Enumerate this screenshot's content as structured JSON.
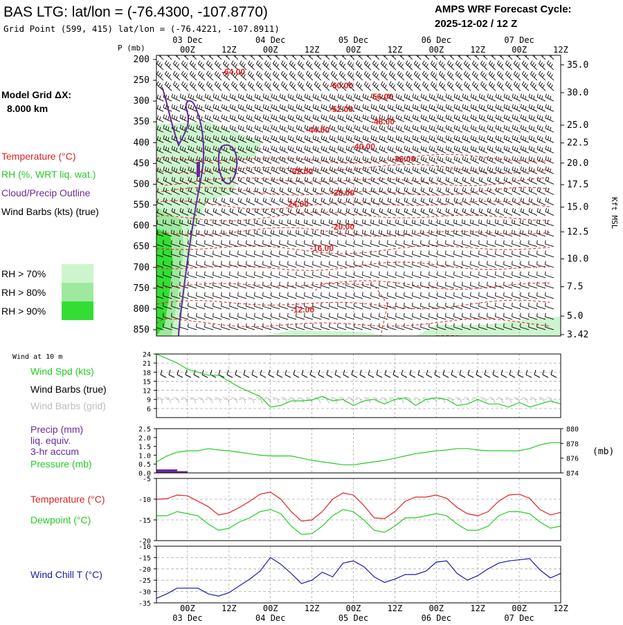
{
  "header": {
    "title": "BAS LTG:  lat/lon = (-76.4300, -107.8770)",
    "grid_point": "Grid Point (599, 415) lat/lon = (-76.4221, -107.8911)",
    "cycle_label": "AMPS WRF Forecast Cycle:",
    "cycle_value": "2025-12-02 / 12  Z"
  },
  "left_labels": {
    "model_grid_label": "Model Grid ΔX:",
    "model_grid_value": "8.000 km",
    "temperature": "Temperature (°C)",
    "rh": "RH (%, WRT liq. wat.)",
    "cloud": "Cloud/Precip Outline",
    "wind_barbs": "Wind Barbs (kts) (true)",
    "rh70": "RH > 70%",
    "rh80": "RH > 80%",
    "rh90": "RH > 90%",
    "wind_10m": "Wind at 10 m",
    "wind_spd": "Wind Spd (kts)",
    "wind_true": "Wind Barbs (true)",
    "wind_grid": "Wind Barbs (grid)",
    "precip1": "Precip (mm)",
    "precip2": "liq. equiv.",
    "precip3": "3-hr accum",
    "pressure": "Pressure (mb)",
    "temp2": "Temperature (°C)",
    "dewpoint": "Dewpoint (°C)",
    "windchill": "Wind Chill T (°C)",
    "mb_unit": "(mb)",
    "p_unit": "P (mb)",
    "kft_unit": "Kft MSL"
  },
  "colors": {
    "temperature": "#e02020",
    "green": "#22cc22",
    "cloud": "#6a2a9a",
    "windchill": "#1a1aa8",
    "gray": "#bdbdbd",
    "rh70": "#cdf5cd",
    "rh80": "#9fe89f",
    "rh90": "#33dd33"
  },
  "chart_data": {
    "type": "line",
    "time_axis": {
      "hours": [
        0,
        12,
        24,
        36,
        48,
        60,
        72,
        84,
        96,
        108
      ],
      "hour_labels": [
        "00Z",
        "12Z",
        "00Z",
        "12Z",
        "00Z",
        "12Z",
        "00Z",
        "12Z",
        "00Z",
        "12Z"
      ],
      "days": [
        {
          "label": "03 Dec",
          "hour": 0
        },
        {
          "label": "04 Dec",
          "hour": 24
        },
        {
          "label": "05 Dec",
          "hour": 48
        },
        {
          "label": "06 Dec",
          "hour": 72
        },
        {
          "label": "07 Dec",
          "hour": 96
        }
      ],
      "start_hour": -9,
      "end_hour": 108
    },
    "cross_section": {
      "pressure_levels": [
        200,
        250,
        300,
        350,
        400,
        450,
        500,
        550,
        600,
        650,
        700,
        750,
        800,
        850
      ],
      "ylim": [
        190,
        865
      ],
      "height_kft": [
        {
          "label": "35.0",
          "p": 207
        },
        {
          "label": "30.0",
          "p": 243
        },
        {
          "label": "25.0",
          "p": 285
        },
        {
          "label": "22.5",
          "p": 308
        },
        {
          "label": "20.0",
          "p": 334
        },
        {
          "label": "17.5",
          "p": 362
        },
        {
          "label": "15.0",
          "p": 391
        },
        {
          "label": "12.5",
          "p": 423
        },
        {
          "label": "10.0",
          "p": 458
        },
        {
          "label": "7.5",
          "p": 494
        },
        {
          "label": "5.0",
          "p": 532
        },
        {
          "label": "3.42",
          "p": 556
        }
      ],
      "temperature_labels": [
        {
          "label": "-64.00",
          "hour": 0
        },
        {
          "label": "-60.00",
          "hour": 24
        },
        {
          "label": "-56.00",
          "hour": 36
        },
        {
          "label": "-52.00",
          "hour": 20
        },
        {
          "label": "-48.00",
          "hour": 32
        },
        {
          "label": "-44.00",
          "hour": 16
        },
        {
          "label": "-40.00",
          "hour": 24
        },
        {
          "label": "-36.00",
          "hour": 44
        },
        {
          "label": "-32.00",
          "hour": 10
        },
        {
          "label": "-28.00",
          "hour": 20
        },
        {
          "label": "-24.00",
          "hour": 14
        },
        {
          "label": "-20.00",
          "hour": 20
        },
        {
          "label": "-16.00",
          "hour": 16
        },
        {
          "label": "-12.00",
          "hour": 14
        }
      ]
    },
    "wind_speed_10m": {
      "ylim": [
        3,
        24
      ],
      "yticks": [
        6,
        9,
        12,
        15,
        18,
        21,
        24
      ],
      "series": [
        {
          "name": "Wind Spd (kts)",
          "hours": [
            -9,
            -6,
            -3,
            0,
            3,
            6,
            9,
            12,
            15,
            18,
            21,
            24,
            27,
            30,
            33,
            36,
            39,
            42,
            45,
            48,
            51,
            54,
            57,
            60,
            63,
            66,
            69,
            72,
            75,
            78,
            81,
            84,
            87,
            90,
            93,
            96,
            99,
            102,
            105,
            108
          ],
          "values": [
            24,
            22.5,
            21,
            19,
            18,
            17,
            17,
            15,
            13,
            11.5,
            10,
            6.5,
            7,
            8.5,
            8.5,
            8.8,
            10,
            8.5,
            9,
            7,
            8.5,
            9,
            7.5,
            9,
            9.5,
            7,
            9,
            9.5,
            9,
            7,
            7.5,
            9,
            7.5,
            7.5,
            6.5,
            8,
            6.5,
            7.5,
            8.5,
            7.5
          ]
        }
      ]
    },
    "precip_pressure": {
      "precip_ylim": [
        0,
        2.5
      ],
      "precip_yticks": [
        0.0,
        0.5,
        1.0,
        1.5,
        2.0,
        2.5
      ],
      "pressure_ylim": [
        874,
        880
      ],
      "pressure_yticks": [
        874,
        876,
        878,
        880
      ],
      "precip_bars": [
        {
          "hour": -7.5,
          "value": 0.2
        },
        {
          "hour": -4.5,
          "value": 0.2
        },
        {
          "hour": -1.5,
          "value": 0.1
        }
      ],
      "pressure": {
        "hours": [
          -9,
          -6,
          -3,
          0,
          3,
          6,
          9,
          12,
          15,
          18,
          21,
          24,
          27,
          30,
          33,
          36,
          39,
          42,
          45,
          48,
          51,
          54,
          57,
          60,
          63,
          66,
          69,
          72,
          75,
          78,
          81,
          84,
          87,
          90,
          93,
          96,
          99,
          102,
          105,
          108
        ],
        "values": [
          875.5,
          876.3,
          876.8,
          877.0,
          877.0,
          877.3,
          877.1,
          877.0,
          876.8,
          876.6,
          876.4,
          876.3,
          876.3,
          876.3,
          876.0,
          875.7,
          875.5,
          875.3,
          875.1,
          875.1,
          875.3,
          875.5,
          875.7,
          876.0,
          876.3,
          876.6,
          876.8,
          877.0,
          877.1,
          877.3,
          877.3,
          877.1,
          877.0,
          877.0,
          877.0,
          877.0,
          877.3,
          877.8,
          878.1,
          878.1
        ]
      }
    },
    "temperature_dewpoint": {
      "ylim": [
        -20,
        -5
      ],
      "yticks": [
        -20,
        -15,
        -10,
        -5
      ],
      "series": [
        {
          "name": "Temperature",
          "hours": [
            -9,
            -6,
            -3,
            0,
            3,
            6,
            9,
            12,
            15,
            18,
            21,
            24,
            27,
            30,
            33,
            36,
            39,
            42,
            45,
            48,
            51,
            54,
            57,
            60,
            63,
            66,
            69,
            72,
            75,
            78,
            81,
            84,
            87,
            90,
            93,
            96,
            99,
            102,
            105,
            108
          ],
          "values": [
            -10,
            -9.9,
            -9,
            -9.2,
            -10.5,
            -11.8,
            -13.8,
            -13.3,
            -12,
            -10.5,
            -8.8,
            -8.3,
            -10,
            -13,
            -15.3,
            -15,
            -13,
            -10,
            -8.5,
            -9,
            -11.5,
            -14.5,
            -14.7,
            -13,
            -10.5,
            -9.5,
            -9.5,
            -9,
            -9.8,
            -12,
            -13.5,
            -14,
            -13,
            -10.5,
            -9,
            -8.8,
            -9.8,
            -12.5,
            -13.8,
            -13.2
          ]
        },
        {
          "name": "Dewpoint",
          "hours": [
            -9,
            -6,
            -3,
            0,
            3,
            6,
            9,
            12,
            15,
            18,
            21,
            24,
            27,
            30,
            33,
            36,
            39,
            42,
            45,
            48,
            51,
            54,
            57,
            60,
            63,
            66,
            69,
            72,
            75,
            78,
            81,
            84,
            87,
            90,
            93,
            96,
            99,
            102,
            105,
            108
          ],
          "values": [
            -14,
            -14,
            -13,
            -13.5,
            -14,
            -16,
            -17.5,
            -17,
            -15.5,
            -14.5,
            -13,
            -12.5,
            -13.5,
            -16.5,
            -18.5,
            -18.3,
            -16.5,
            -14,
            -12.5,
            -13,
            -15,
            -17.5,
            -18,
            -16.5,
            -14.5,
            -14.5,
            -14,
            -13.5,
            -14,
            -16,
            -17.5,
            -17.5,
            -16.5,
            -14,
            -13,
            -13,
            -13.5,
            -15.5,
            -17,
            -16.5
          ]
        }
      ]
    },
    "wind_chill": {
      "ylim": [
        -35,
        -10
      ],
      "yticks": [
        -35,
        -30,
        -25,
        -20,
        -15,
        -10
      ],
      "series": [
        {
          "name": "Wind Chill T",
          "hours": [
            -9,
            -6,
            -3,
            0,
            3,
            6,
            9,
            12,
            15,
            18,
            21,
            24,
            27,
            30,
            33,
            36,
            39,
            42,
            45,
            48,
            51,
            54,
            57,
            60,
            63,
            66,
            69,
            72,
            75,
            78,
            81,
            84,
            87,
            90,
            93,
            96,
            99,
            102,
            105,
            108
          ],
          "values": [
            -33,
            -31,
            -28.5,
            -28.5,
            -28.5,
            -31,
            -32,
            -30.5,
            -27.5,
            -24.5,
            -21,
            -15,
            -18,
            -22,
            -26.5,
            -25,
            -21.5,
            -23.5,
            -17.5,
            -16.5,
            -19,
            -23.5,
            -26,
            -24.5,
            -22.5,
            -22.5,
            -21,
            -17,
            -16.5,
            -22,
            -25,
            -23,
            -20,
            -17.5,
            -16.5,
            -16,
            -15.5,
            -20.5,
            -24,
            -22
          ]
        }
      ]
    }
  }
}
